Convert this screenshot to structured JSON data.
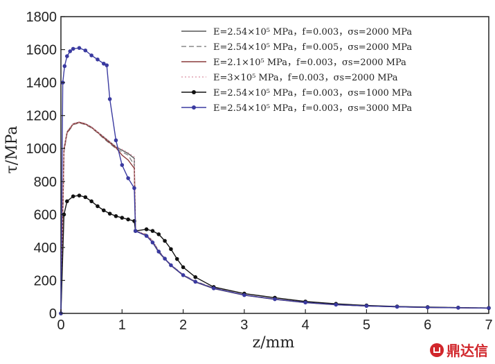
{
  "chart_data": {
    "type": "line",
    "xlabel": "z/mm",
    "ylabel": "τ/MPa",
    "xlim": [
      0,
      7
    ],
    "ylim": [
      0,
      1800
    ],
    "xticks": [
      0,
      1,
      2,
      3,
      4,
      5,
      6,
      7
    ],
    "yticks": [
      0,
      200,
      400,
      600,
      800,
      1000,
      1200,
      1400,
      1600,
      1800
    ],
    "grid": false,
    "legend_position": "top-right",
    "series": [
      {
        "name": "E=2.54×10⁵ MPa，f=0.003，σs=2000 MPa",
        "color": "#555555",
        "style": "solid",
        "marker": "none",
        "x": [
          0,
          0.05,
          0.1,
          0.2,
          0.3,
          0.4,
          0.5,
          0.6,
          0.7,
          0.8,
          0.9,
          1.0,
          1.1,
          1.2,
          1.22,
          1.4,
          1.5,
          1.6,
          1.7,
          1.8,
          2.0,
          2.2,
          2.5,
          3.0,
          3.5,
          4.0,
          4.5,
          5.0,
          5.5,
          6.0,
          6.5,
          7.0
        ],
        "y": [
          0,
          1000,
          1100,
          1150,
          1160,
          1150,
          1130,
          1100,
          1070,
          1040,
          1010,
          990,
          970,
          940,
          500,
          470,
          430,
          370,
          330,
          290,
          230,
          190,
          150,
          110,
          85,
          65,
          52,
          45,
          40,
          36,
          34,
          32
        ]
      },
      {
        "name": "E=2.54×10⁵ MPa，f=0.005，σs=2000 MPa",
        "color": "#888888",
        "style": "dashed",
        "marker": "none",
        "x": [
          0,
          0.05,
          0.1,
          0.2,
          0.3,
          0.4,
          0.5,
          0.6,
          0.7,
          0.8,
          0.9,
          1.0,
          1.1,
          1.2,
          1.22,
          1.4,
          1.5,
          1.6,
          1.7,
          1.8,
          2.0,
          2.2,
          2.5,
          3.0,
          3.5,
          4.0,
          4.5,
          5.0,
          5.5,
          6.0,
          6.5,
          7.0
        ],
        "y": [
          0,
          980,
          1090,
          1145,
          1155,
          1145,
          1125,
          1095,
          1060,
          1030,
          1000,
          980,
          960,
          900,
          500,
          480,
          440,
          380,
          335,
          295,
          235,
          195,
          155,
          112,
          87,
          67,
          54,
          46,
          41,
          37,
          35,
          33
        ]
      },
      {
        "name": "E=2.1×10⁵ MPa，f=0.003，σs=2000 MPa",
        "color": "#8a3a3a",
        "style": "solid",
        "marker": "none",
        "x": [
          0,
          0.05,
          0.1,
          0.2,
          0.3,
          0.4,
          0.5,
          0.6,
          0.7,
          0.8,
          0.9,
          1.0,
          1.1,
          1.2,
          1.22,
          1.4,
          1.5,
          1.6,
          1.7,
          1.8,
          2.0,
          2.2,
          2.5,
          3.0,
          3.5,
          4.0,
          4.5,
          5.0,
          5.5,
          6.0,
          6.5,
          7.0
        ],
        "y": [
          0,
          990,
          1095,
          1148,
          1158,
          1148,
          1128,
          1098,
          1065,
          1035,
          1005,
          960,
          930,
          880,
          500,
          475,
          435,
          375,
          332,
          292,
          232,
          192,
          152,
          111,
          86,
          66,
          53,
          45,
          40,
          36,
          34,
          32
        ]
      },
      {
        "name": "E=3×10⁵ MPa，f=0.003，σs=2000 MPa",
        "color": "#e0a0b0",
        "style": "dotted",
        "marker": "none",
        "x": [
          0,
          0.05,
          0.1,
          0.2,
          0.3,
          0.4,
          0.5,
          0.6,
          0.7,
          0.8,
          0.9,
          1.0,
          1.1,
          1.2,
          1.22,
          1.4,
          1.5,
          1.6,
          1.7,
          1.8,
          2.0,
          2.2,
          2.5,
          3.0,
          3.5,
          4.0,
          4.5,
          5.0,
          5.5,
          6.0,
          6.5,
          7.0
        ],
        "y": [
          0,
          1005,
          1105,
          1152,
          1162,
          1152,
          1132,
          1102,
          1072,
          1042,
          1012,
          995,
          975,
          950,
          500,
          478,
          438,
          378,
          334,
          294,
          234,
          194,
          154,
          112,
          87,
          67,
          54,
          46,
          41,
          37,
          35,
          33
        ]
      },
      {
        "name": "E=2.54×10⁵ MPa，f=0.003，σs=1000 MPa",
        "color": "#111111",
        "style": "solid",
        "marker": "circle",
        "x": [
          0,
          0.05,
          0.1,
          0.2,
          0.3,
          0.4,
          0.5,
          0.6,
          0.7,
          0.8,
          0.9,
          1.0,
          1.1,
          1.2,
          1.22,
          1.4,
          1.5,
          1.6,
          1.7,
          1.8,
          1.9,
          2.0,
          2.2,
          2.5,
          3.0,
          3.5,
          4.0,
          4.5,
          5.0,
          5.5,
          6.0,
          6.5,
          7.0
        ],
        "y": [
          0,
          600,
          680,
          710,
          715,
          705,
          680,
          650,
          625,
          605,
          590,
          580,
          570,
          560,
          500,
          510,
          500,
          480,
          440,
          390,
          330,
          280,
          220,
          160,
          120,
          95,
          72,
          58,
          48,
          42,
          38,
          35,
          33
        ]
      },
      {
        "name": "E=2.54×10⁵ MPa，f=0.003，σs=3000 MPa",
        "color": "#3a3aa0",
        "style": "solid",
        "marker": "circle",
        "x": [
          0,
          0.03,
          0.06,
          0.1,
          0.15,
          0.2,
          0.3,
          0.4,
          0.5,
          0.6,
          0.7,
          0.75,
          0.8,
          0.9,
          1.0,
          1.1,
          1.2,
          1.22,
          1.4,
          1.5,
          1.6,
          1.7,
          1.8,
          2.0,
          2.2,
          2.5,
          3.0,
          3.5,
          4.0,
          4.5,
          5.0,
          5.5,
          6.0,
          6.5,
          7.0
        ],
        "y": [
          0,
          1400,
          1500,
          1560,
          1590,
          1605,
          1610,
          1595,
          1565,
          1540,
          1515,
          1505,
          1300,
          1050,
          900,
          820,
          760,
          500,
          470,
          430,
          375,
          332,
          292,
          232,
          192,
          152,
          111,
          86,
          66,
          53,
          45,
          40,
          36,
          34,
          32
        ]
      }
    ]
  },
  "watermark": {
    "text": "鼎达信"
  }
}
